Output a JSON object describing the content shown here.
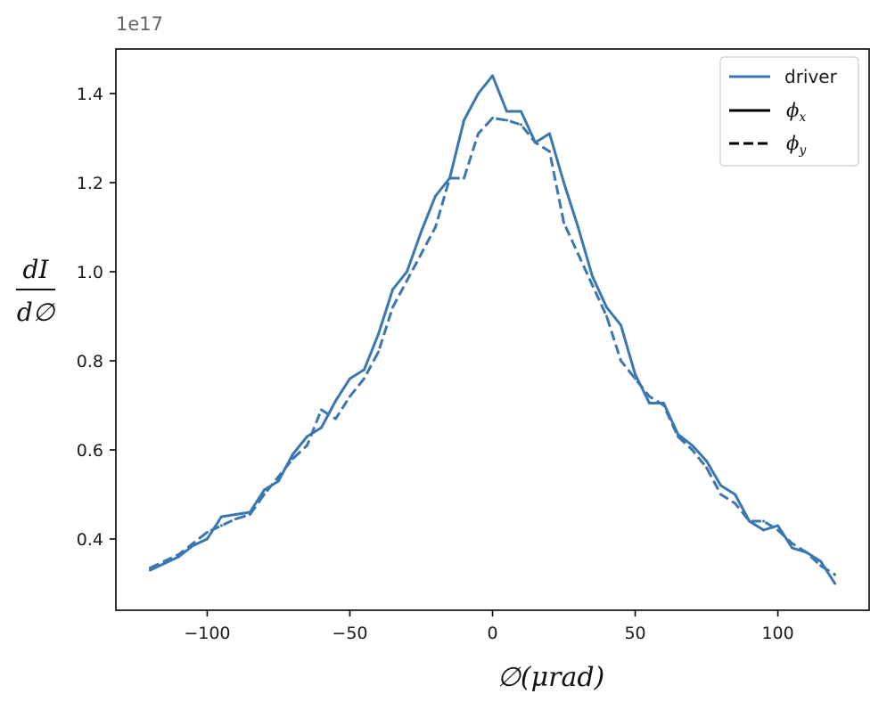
{
  "chart_data": {
    "type": "line",
    "offset_text": "1e17",
    "xlabel": "∅(μrad)",
    "ylabel": {
      "numerator": "dI",
      "denominator": "d∅"
    },
    "xlim": [
      -132,
      132
    ],
    "ylim": [
      0.24,
      1.5
    ],
    "x_ticks": [
      -100,
      -50,
      0,
      50,
      100
    ],
    "x_tick_labels": [
      "−100",
      "−50",
      "0",
      "50",
      "100"
    ],
    "y_ticks": [
      0.4,
      0.6,
      0.8,
      1.0,
      1.2,
      1.4
    ],
    "y_tick_labels": [
      "0.4",
      "0.6",
      "0.8",
      "1.0",
      "1.2",
      "1.4"
    ],
    "grid": false,
    "legend_position": "top-right",
    "legend": [
      {
        "label": "driver",
        "style": "solid",
        "color": "#3a76b0"
      },
      {
        "label": "ϕ",
        "subscript": "x",
        "style": "solid",
        "color": "#000000"
      },
      {
        "label": "ϕ",
        "subscript": "y",
        "style": "dashed",
        "color": "#000000"
      }
    ],
    "series": [
      {
        "style": "solid",
        "color": "#3a76b0",
        "x": [
          -120,
          -115,
          -110,
          -105,
          -100,
          -95,
          -90,
          -85,
          -80,
          -75,
          -70,
          -65,
          -60,
          -55,
          -50,
          -45,
          -40,
          -35,
          -30,
          -25,
          -20,
          -15,
          -10,
          -5,
          0,
          5,
          10,
          15,
          20,
          25,
          30,
          35,
          40,
          45,
          50,
          55,
          60,
          65,
          70,
          75,
          80,
          85,
          90,
          95,
          100,
          105,
          110,
          115,
          120
        ],
        "y": [
          0.33,
          0.345,
          0.36,
          0.385,
          0.4,
          0.45,
          0.455,
          0.46,
          0.51,
          0.53,
          0.59,
          0.63,
          0.65,
          0.71,
          0.76,
          0.78,
          0.86,
          0.96,
          1.0,
          1.09,
          1.17,
          1.21,
          1.34,
          1.4,
          1.44,
          1.36,
          1.36,
          1.29,
          1.31,
          1.2,
          1.1,
          0.99,
          0.92,
          0.88,
          0.77,
          0.705,
          0.705,
          0.635,
          0.61,
          0.575,
          0.52,
          0.5,
          0.44,
          0.42,
          0.43,
          0.38,
          0.37,
          0.35,
          0.3
        ]
      },
      {
        "style": "dashed",
        "color": "#3a76b0",
        "x": [
          -120,
          -115,
          -110,
          -105,
          -100,
          -95,
          -90,
          -85,
          -80,
          -75,
          -70,
          -65,
          -60,
          -55,
          -50,
          -45,
          -40,
          -35,
          -30,
          -25,
          -20,
          -15,
          -10,
          -5,
          0,
          5,
          10,
          15,
          20,
          25,
          30,
          35,
          40,
          45,
          50,
          55,
          60,
          65,
          70,
          75,
          80,
          85,
          90,
          95,
          100,
          105,
          110,
          115,
          120
        ],
        "y": [
          0.335,
          0.35,
          0.365,
          0.39,
          0.415,
          0.43,
          0.445,
          0.455,
          0.5,
          0.54,
          0.58,
          0.61,
          0.69,
          0.67,
          0.72,
          0.76,
          0.82,
          0.92,
          0.98,
          1.04,
          1.1,
          1.21,
          1.21,
          1.31,
          1.345,
          1.34,
          1.33,
          1.29,
          1.27,
          1.11,
          1.04,
          0.97,
          0.9,
          0.8,
          0.76,
          0.72,
          0.7,
          0.63,
          0.6,
          0.56,
          0.5,
          0.48,
          0.44,
          0.44,
          0.42,
          0.39,
          0.37,
          0.34,
          0.32
        ]
      }
    ]
  }
}
